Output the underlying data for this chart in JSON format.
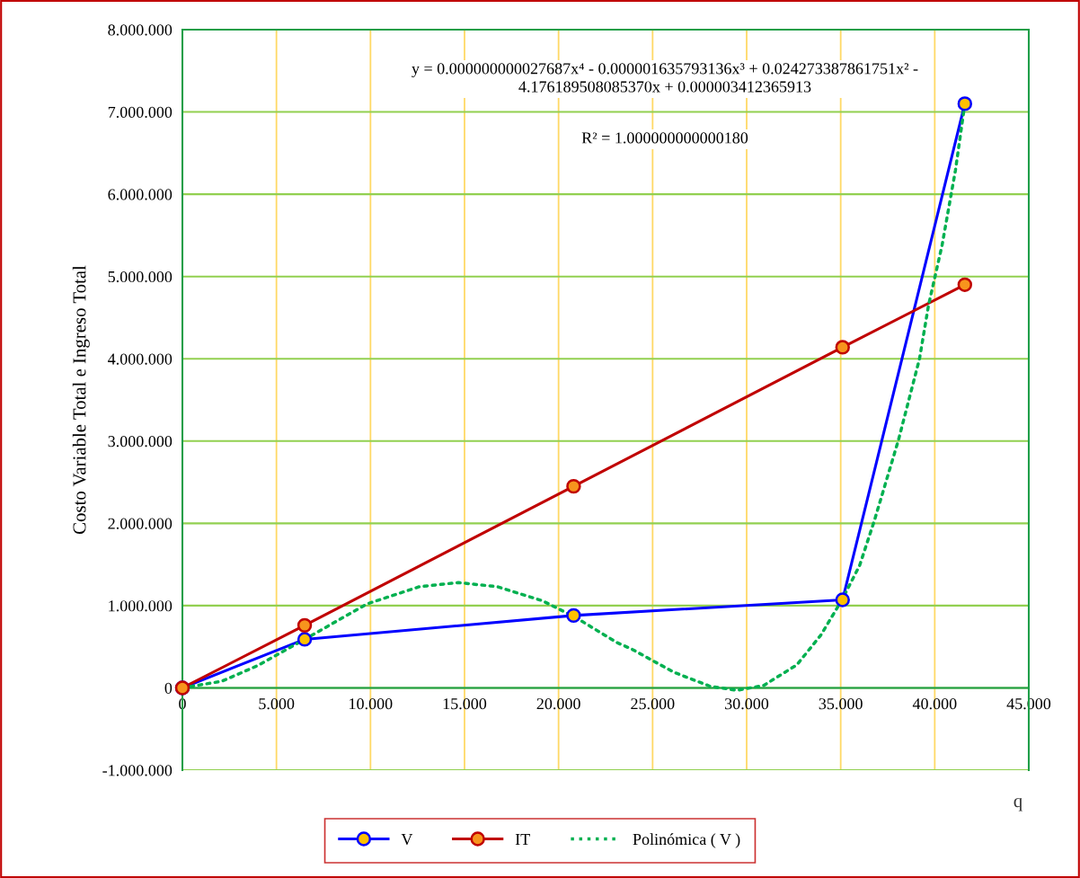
{
  "chart_data": {
    "type": "line",
    "ylabel": "Costo Variable Total e Ingreso Total",
    "xlabel": "q",
    "annotations": [
      "y = 0.000000000027687x⁴ - 0.000001635793136x³ + 0.024273387861751x² -\n4.176189508085370x + 0.000003412365913",
      "R² = 1.000000000000180"
    ],
    "series": [
      {
        "name": "V",
        "color": "#0000ff",
        "marker": "circle",
        "line_style": "solid",
        "x": [
          0,
          6500,
          20800,
          35100,
          41600
        ],
        "values": [
          0,
          590000,
          880000,
          1070000,
          7100000
        ]
      },
      {
        "name": "IT",
        "color": "#c00000",
        "marker": "circle",
        "line_style": "solid",
        "x": [
          0,
          6500,
          20800,
          35100,
          41600
        ],
        "values": [
          0,
          760000,
          2450000,
          4140000,
          4900000
        ]
      },
      {
        "name": "Polinómica ( V )",
        "color": "#00b050",
        "marker": "none",
        "line_style": "dotted",
        "x": [
          0,
          2090,
          4000,
          6500,
          9810,
          12600,
          14670,
          16740,
          19130,
          20880,
          23110,
          23900,
          26130,
          28050,
          29480,
          30910,
          32670,
          33940,
          35070,
          36010,
          36800,
          38080,
          39190,
          39670,
          40390,
          41100,
          41600
        ],
        "values": [
          0,
          80000,
          270000,
          590000,
          1020000,
          1230000,
          1280000,
          1230000,
          1060000,
          860000,
          550000,
          470000,
          190000,
          20000,
          -30000,
          30000,
          280000,
          640000,
          1070000,
          1490000,
          2040000,
          3020000,
          4000000,
          4650000,
          5380000,
          6290000,
          7100000
        ]
      }
    ],
    "xlim": [
      0,
      45000
    ],
    "xticks": [
      0,
      {
        "value": 5000,
        "label": "5.000"
      },
      {
        "value": 10000,
        "label": "10.000"
      },
      {
        "value": 15000,
        "label": "15.000"
      },
      {
        "value": 20000,
        "label": "20.000"
      },
      {
        "value": 25000,
        "label": "25.000"
      },
      {
        "value": 30000,
        "label": "30.000"
      },
      {
        "value": 35000,
        "label": "35.000"
      },
      {
        "value": 40000,
        "label": "40.000"
      },
      {
        "value": 45000,
        "label": "45.000"
      }
    ],
    "ylim": [
      -1000000,
      8000000
    ],
    "yticks": [
      {
        "value": -1000000,
        "label": "-1.000.000"
      },
      0,
      {
        "value": 1000000,
        "label": "1.000.000"
      },
      {
        "value": 2000000,
        "label": "2.000.000"
      },
      {
        "value": 3000000,
        "label": "3.000.000"
      },
      {
        "value": 4000000,
        "label": "4.000.000"
      },
      {
        "value": 5000000,
        "label": "5.000.000"
      },
      {
        "value": 6000000,
        "label": "6.000.000"
      },
      {
        "value": 7000000,
        "label": "7.000.000"
      },
      {
        "value": 8000000,
        "label": "8.000.000"
      }
    ],
    "grid": true,
    "legend": "bottom"
  }
}
